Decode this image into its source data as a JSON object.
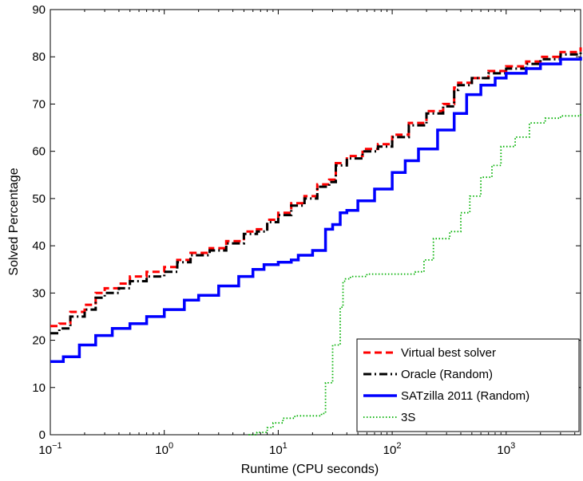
{
  "chart_data": {
    "type": "line",
    "title": "",
    "xlabel": "Runtime (CPU seconds)",
    "ylabel": "Solved Percentage",
    "x_scale": "log",
    "xlim": [
      0.1,
      4500
    ],
    "ylim": [
      0,
      90
    ],
    "x_ticks": [
      {
        "value": 0.1,
        "base": "10",
        "exp": "−1"
      },
      {
        "value": 1,
        "base": "10",
        "exp": "0"
      },
      {
        "value": 10,
        "base": "10",
        "exp": "1"
      },
      {
        "value": 100,
        "base": "10",
        "exp": "2"
      },
      {
        "value": 1000,
        "base": "10",
        "exp": "3"
      }
    ],
    "y_ticks": [
      "0",
      "10",
      "20",
      "30",
      "40",
      "50",
      "60",
      "70",
      "80",
      "90"
    ],
    "grid": false,
    "legend_position": "bottom-right",
    "series": [
      {
        "name": "Virtual best solver",
        "color": "#ff0000",
        "style": "dashed",
        "x": [
          0.1,
          0.12,
          0.15,
          0.2,
          0.25,
          0.3,
          0.4,
          0.5,
          0.7,
          1.0,
          1.3,
          1.7,
          2.5,
          3.5,
          5,
          6.5,
          8,
          10,
          13,
          17,
          22,
          28,
          32,
          40,
          55,
          75,
          100,
          140,
          200,
          280,
          350,
          380,
          500,
          700,
          1000,
          1500,
          2000,
          3000,
          4500
        ],
        "y": [
          23,
          23.5,
          26,
          27.5,
          30,
          31,
          32,
          33.5,
          34.5,
          35.5,
          37,
          38.5,
          39.5,
          41,
          43,
          43.5,
          45.5,
          47,
          49,
          50.5,
          53,
          54,
          57.5,
          59,
          60.5,
          61.5,
          63.5,
          66,
          68.5,
          70,
          73.5,
          74.5,
          75.5,
          77,
          78,
          79,
          80,
          81,
          82
        ]
      },
      {
        "name": "Oracle (Random)",
        "color": "#000000",
        "style": "dashdot",
        "x": [
          0.1,
          0.12,
          0.15,
          0.2,
          0.25,
          0.3,
          0.4,
          0.5,
          0.7,
          1.0,
          1.3,
          1.7,
          2.5,
          3.5,
          5,
          6.5,
          8,
          10,
          13,
          17,
          22,
          28,
          32,
          40,
          55,
          75,
          100,
          140,
          200,
          280,
          350,
          380,
          500,
          700,
          1000,
          1500,
          2000,
          3000,
          4500
        ],
        "y": [
          21.5,
          22.5,
          25,
          26.5,
          29,
          30,
          31,
          32.5,
          33.5,
          34.5,
          36.5,
          38,
          39,
          40.5,
          42.5,
          43,
          45,
          46.5,
          48.5,
          50,
          52.5,
          53.5,
          57,
          58.5,
          60,
          61,
          63,
          65.5,
          68,
          69.5,
          73,
          74,
          75.5,
          76.5,
          77.5,
          78.5,
          79.5,
          80.5,
          81.5
        ]
      },
      {
        "name": "SATzilla 2011 (Random)",
        "color": "#0000ff",
        "style": "solid",
        "x": [
          0.1,
          0.13,
          0.18,
          0.25,
          0.35,
          0.5,
          0.7,
          1.0,
          1.5,
          2.0,
          3.0,
          4.5,
          6,
          7.5,
          10,
          13,
          15,
          20,
          25,
          26,
          30,
          35,
          40,
          50,
          70,
          100,
          130,
          170,
          250,
          350,
          450,
          600,
          800,
          1000,
          1500,
          2000,
          3000,
          4500
        ],
        "y": [
          15.5,
          16.5,
          19,
          21,
          22.5,
          23.5,
          25,
          26.5,
          28.5,
          29.5,
          31.5,
          33.5,
          35,
          36,
          36.5,
          37,
          38,
          39,
          39,
          43.5,
          44.5,
          47,
          47.5,
          49.5,
          52,
          55.5,
          58,
          60.5,
          64.5,
          68,
          72,
          74,
          75.5,
          76.5,
          77.5,
          78.5,
          79.5,
          80
        ]
      },
      {
        "name": "3S",
        "color": "#00b000",
        "style": "dotted",
        "x": [
          5.5,
          6.5,
          8,
          9,
          11,
          14,
          18,
          24,
          26,
          30,
          35,
          37,
          39,
          43,
          60,
          100,
          160,
          190,
          230,
          320,
          400,
          480,
          600,
          750,
          900,
          1200,
          1600,
          2200,
          3000,
          4500
        ],
        "y": [
          0,
          0.5,
          1.5,
          2.5,
          3.5,
          4,
          4,
          4.5,
          11,
          19,
          27,
          32.5,
          33,
          33.5,
          34,
          34,
          34.5,
          37,
          41.5,
          43,
          47,
          50.5,
          54.5,
          57,
          61,
          63,
          66,
          67,
          67.5,
          68
        ]
      }
    ]
  }
}
